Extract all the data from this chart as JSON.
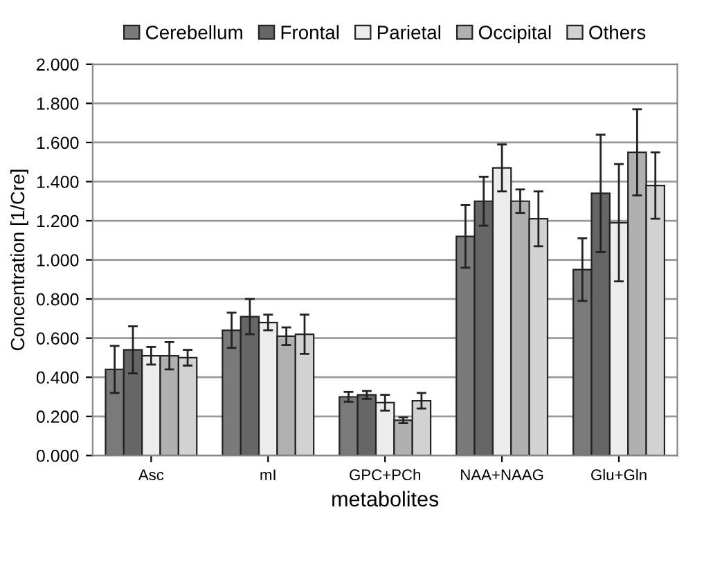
{
  "chart_data": {
    "type": "bar",
    "xlabel": "metabolites",
    "ylabel": "Concentration [1/Cre]",
    "categories": [
      "Asc",
      "mI",
      "GPC+PCh",
      "NAA+NAAG",
      "Glu+Gln"
    ],
    "series": [
      {
        "name": "Cerebellum",
        "color": "#7a7a7a",
        "values": [
          0.44,
          0.64,
          0.3,
          1.12,
          0.95
        ],
        "errors": [
          0.12,
          0.09,
          0.025,
          0.16,
          0.16
        ]
      },
      {
        "name": "Frontal",
        "color": "#666666",
        "values": [
          0.54,
          0.71,
          0.31,
          1.3,
          1.34
        ],
        "errors": [
          0.12,
          0.09,
          0.02,
          0.125,
          0.3
        ]
      },
      {
        "name": "Parietal",
        "color": "#ececec",
        "values": [
          0.51,
          0.68,
          0.27,
          1.47,
          1.19
        ],
        "errors": [
          0.045,
          0.04,
          0.04,
          0.12,
          0.3
        ]
      },
      {
        "name": "Occipital",
        "color": "#b0b0b0",
        "values": [
          0.51,
          0.61,
          0.18,
          1.3,
          1.55
        ],
        "errors": [
          0.07,
          0.045,
          0.015,
          0.06,
          0.22
        ]
      },
      {
        "name": "Others",
        "color": "#d2d2d2",
        "values": [
          0.5,
          0.62,
          0.28,
          1.21,
          1.38
        ],
        "errors": [
          0.04,
          0.1,
          0.04,
          0.14,
          0.17
        ]
      }
    ],
    "ylim": [
      0,
      2
    ],
    "yticks": [
      {
        "value": 0,
        "label": "0.000"
      },
      {
        "value": 0.2,
        "label": "0.200"
      },
      {
        "value": 0.4,
        "label": "0.400"
      },
      {
        "value": 0.6,
        "label": "0.600"
      },
      {
        "value": 0.8,
        "label": "0.800"
      },
      {
        "value": 1.0,
        "label": "1.000"
      },
      {
        "value": 1.2,
        "label": "1.200"
      },
      {
        "value": 1.4,
        "label": "1.400"
      },
      {
        "value": 1.6,
        "label": "1.600"
      },
      {
        "value": 1.8,
        "label": "1.800"
      },
      {
        "value": 2.0,
        "label": "2.000"
      }
    ],
    "grid": "y",
    "legend": "top"
  }
}
